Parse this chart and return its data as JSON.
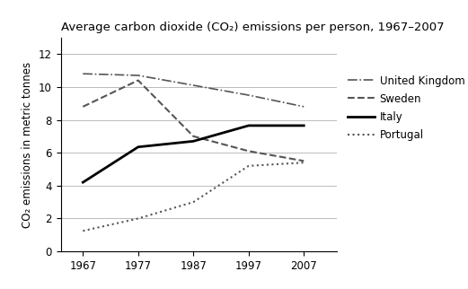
{
  "title": "Average carbon dioxide (CO₂) emissions per person, 1967–2007",
  "ylabel": "CO₂ emissions in metric tonnes",
  "years": [
    1967,
    1977,
    1987,
    1997,
    2007
  ],
  "series": {
    "United Kingdom": {
      "values": [
        10.8,
        10.7,
        10.1,
        9.5,
        8.8
      ],
      "linestyle": "dashdot",
      "linewidth": 1.2,
      "color": "#555555"
    },
    "Sweden": {
      "values": [
        8.8,
        10.4,
        7.0,
        6.1,
        5.5
      ],
      "linestyle": "dashed",
      "linewidth": 1.5,
      "color": "#555555"
    },
    "Italy": {
      "values": [
        4.2,
        6.35,
        6.7,
        7.65,
        7.65
      ],
      "linestyle": "solid",
      "linewidth": 2.0,
      "color": "#000000"
    },
    "Portugal": {
      "values": [
        1.25,
        2.0,
        3.0,
        5.2,
        5.4
      ],
      "linestyle": "dotted",
      "linewidth": 1.5,
      "color": "#555555"
    }
  },
  "xlim": [
    1963,
    2013
  ],
  "ylim": [
    0,
    13
  ],
  "yticks": [
    0,
    2,
    4,
    6,
    8,
    10,
    12
  ],
  "xticks": [
    1967,
    1977,
    1987,
    1997,
    2007
  ],
  "background_color": "#ffffff",
  "grid_color": "#bbbbbb",
  "title_fontsize": 9.5,
  "label_fontsize": 8.5,
  "tick_fontsize": 8.5,
  "legend_fontsize": 8.5
}
